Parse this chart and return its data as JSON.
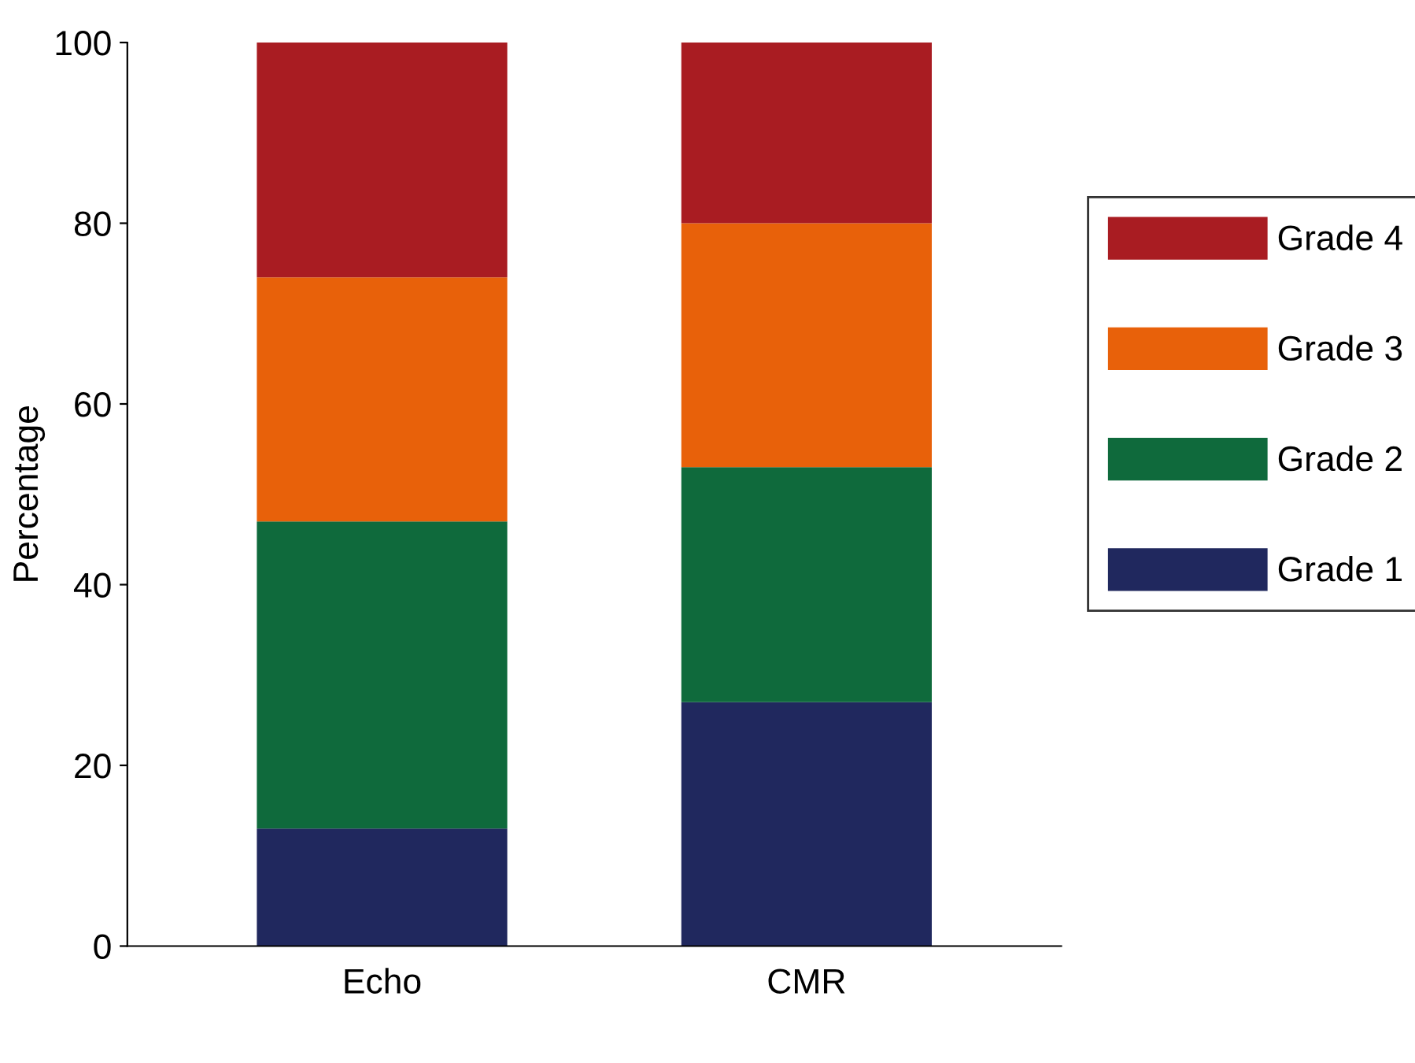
{
  "chart_data": {
    "type": "bar",
    "stacked": true,
    "ylabel": "Percentage",
    "categories": [
      "Echo",
      "CMR"
    ],
    "series": [
      {
        "name": "Grade 1",
        "color": "#20285e",
        "values": [
          13,
          27
        ]
      },
      {
        "name": "Grade 2",
        "color": "#0f6a3c",
        "values": [
          34,
          26
        ]
      },
      {
        "name": "Grade 3",
        "color": "#e8610a",
        "values": [
          27,
          27
        ]
      },
      {
        "name": "Grade 4",
        "color": "#a91c22",
        "values": [
          26,
          20
        ]
      }
    ],
    "ylim": [
      0,
      100
    ],
    "yticks": [
      0,
      20,
      40,
      60,
      80,
      100
    ],
    "grid": false,
    "legend": "right"
  }
}
